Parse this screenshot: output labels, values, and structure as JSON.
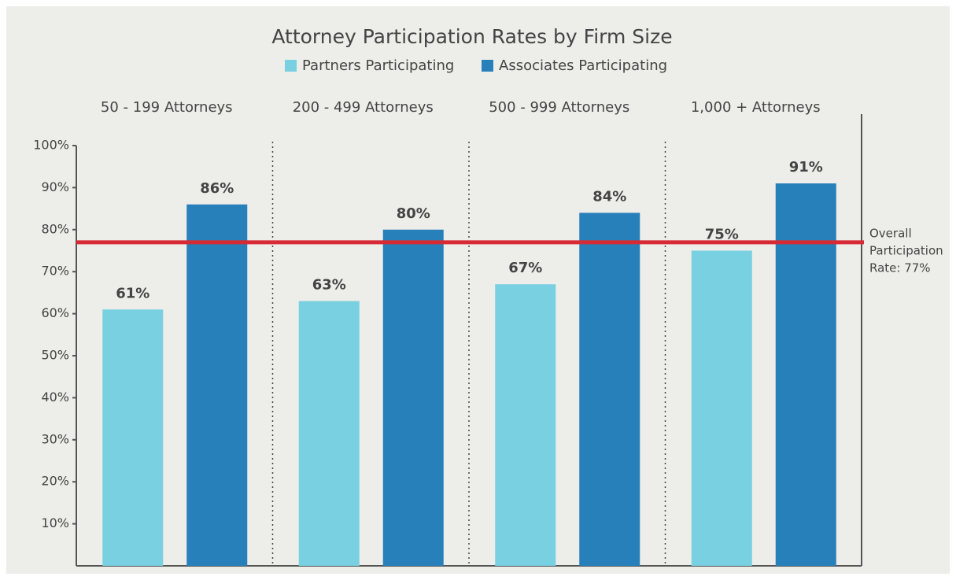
{
  "chart_data": {
    "type": "bar",
    "title": "Attorney Participation Rates by Firm Size",
    "categories": [
      "50 - 199 Attorneys",
      "200 - 499 Attorneys",
      "500 - 999 Attorneys",
      "1,000 + Attorneys"
    ],
    "series": [
      {
        "name": "Partners Participating",
        "color": "#79d0e0",
        "values": [
          61,
          63,
          67,
          75
        ],
        "value_labels": [
          "61%",
          "63%",
          "67%",
          "75%"
        ]
      },
      {
        "name": "Associates Participating",
        "color": "#2880bb",
        "values": [
          86,
          80,
          84,
          91
        ],
        "value_labels": [
          "86%",
          "80%",
          "84%",
          "91%"
        ]
      }
    ],
    "ylim": [
      0,
      100
    ],
    "yticks": [
      {
        "value": 10,
        "label": "10%"
      },
      {
        "value": 20,
        "label": "20%"
      },
      {
        "value": 30,
        "label": "30%"
      },
      {
        "value": 40,
        "label": "40%"
      },
      {
        "value": 50,
        "label": "50%"
      },
      {
        "value": 60,
        "label": "60%"
      },
      {
        "value": 70,
        "label": "70%"
      },
      {
        "value": 80,
        "label": "80%"
      },
      {
        "value": 90,
        "label": "90%"
      },
      {
        "value": 100,
        "label": "100%"
      }
    ],
    "reference_line": {
      "value": 77,
      "color": "#d62a35",
      "label_lines": [
        "Overall",
        "Participation",
        "Rate: 77%"
      ]
    },
    "grid": false
  }
}
